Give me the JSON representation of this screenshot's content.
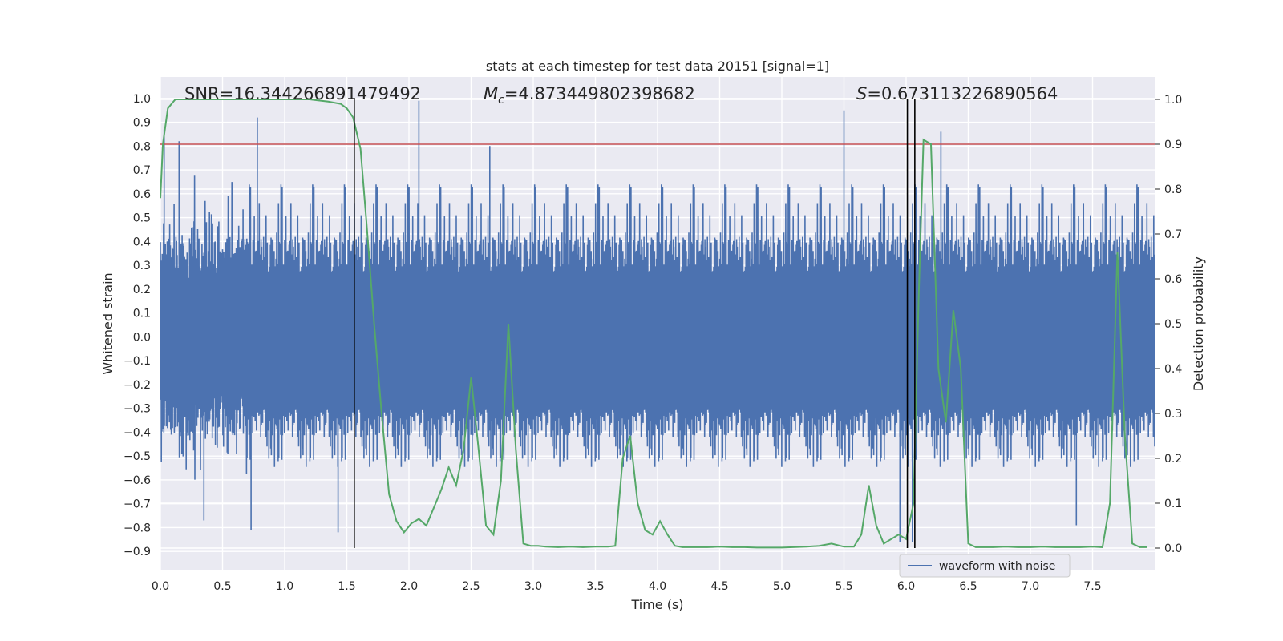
{
  "chart_data": {
    "type": "line",
    "title": "stats at each timestep for test data 20151 [signal=1]",
    "xlabel": "Time (s)",
    "ylabel": "Whitened strain",
    "y2label": "Detection probability",
    "xlim": [
      0,
      8
    ],
    "ylim": [
      -0.98,
      1.09
    ],
    "y2lim": [
      -0.05,
      1.05
    ],
    "x_ticks": [
      "0.0",
      "0.5",
      "1.0",
      "1.5",
      "2.0",
      "2.5",
      "3.0",
      "3.5",
      "4.0",
      "4.5",
      "5.0",
      "5.5",
      "6.0",
      "6.5",
      "7.0",
      "7.5"
    ],
    "y_ticks": [
      "1.0",
      "0.9",
      "0.8",
      "0.7",
      "0.6",
      "0.5",
      "0.4",
      "0.3",
      "0.2",
      "0.1",
      "0.0",
      "−0.1",
      "−0.2",
      "−0.3",
      "−0.4",
      "−0.5",
      "−0.6",
      "−0.7",
      "−0.8",
      "−0.9"
    ],
    "y2_ticks": [
      "1.0",
      "0.9",
      "0.8",
      "0.7",
      "0.6",
      "0.5",
      "0.4",
      "0.3",
      "0.2",
      "0.1",
      "0.0"
    ],
    "annotations": {
      "snr_label": "SNR=16.344266891479492",
      "mc_symbol": "M",
      "mc_sub": "c",
      "mc_value": "=4.873449802398682",
      "s_symbol": "S",
      "s_value": "=0.673113226890564"
    },
    "threshold": {
      "y2": 0.9,
      "color": "#c44e52"
    },
    "vertical_lines": [
      1.56,
      6.01,
      6.07
    ],
    "legend": {
      "entries": [
        "waveform with noise"
      ],
      "placement": "lower-right"
    },
    "grid": true,
    "series": [
      {
        "name": "waveform with noise",
        "axis": "left",
        "kind": "noise-strain",
        "color": "#4c72b0",
        "typical_amplitude": 0.42,
        "peak_max": 0.99,
        "peak_min": -0.86,
        "notable_peaks": [
          {
            "x": 0.03,
            "y": 0.87
          },
          {
            "x": 0.15,
            "y": 0.82
          },
          {
            "x": 0.78,
            "y": 0.92
          },
          {
            "x": 2.08,
            "y": 0.99
          },
          {
            "x": 2.65,
            "y": 0.8
          },
          {
            "x": 5.5,
            "y": 0.95
          },
          {
            "x": 6.28,
            "y": 0.86
          },
          {
            "x": 0.35,
            "y": -0.77
          },
          {
            "x": 0.73,
            "y": -0.81
          },
          {
            "x": 1.43,
            "y": -0.82
          },
          {
            "x": 5.95,
            "y": -0.86
          },
          {
            "x": 6.05,
            "y": -0.86
          },
          {
            "x": 7.37,
            "y": -0.79
          }
        ]
      },
      {
        "name": "",
        "axis": "right",
        "color": "#55a868",
        "x": [
          0.0,
          0.02,
          0.06,
          0.12,
          0.2,
          0.4,
          0.6,
          0.8,
          1.0,
          1.2,
          1.35,
          1.45,
          1.5,
          1.55,
          1.61,
          1.66,
          1.72,
          1.78,
          1.84,
          1.9,
          1.96,
          2.02,
          2.08,
          2.14,
          2.2,
          2.26,
          2.32,
          2.38,
          2.44,
          2.5,
          2.56,
          2.62,
          2.68,
          2.74,
          2.8,
          2.86,
          2.92,
          2.98,
          3.04,
          3.1,
          3.2,
          3.3,
          3.4,
          3.5,
          3.6,
          3.66,
          3.72,
          3.78,
          3.84,
          3.9,
          3.96,
          4.02,
          4.08,
          4.14,
          4.2,
          4.3,
          4.4,
          4.5,
          4.6,
          4.7,
          4.8,
          5.0,
          5.2,
          5.3,
          5.4,
          5.5,
          5.58,
          5.64,
          5.7,
          5.76,
          5.82,
          5.88,
          5.94,
          6.0,
          6.06,
          6.1,
          6.14,
          6.2,
          6.26,
          6.32,
          6.38,
          6.44,
          6.5,
          6.56,
          6.62,
          6.7,
          6.8,
          6.9,
          7.0,
          7.1,
          7.2,
          7.3,
          7.4,
          7.5,
          7.58,
          7.64,
          7.7,
          7.76,
          7.82,
          7.88,
          7.94
        ],
        "values": [
          0.78,
          0.9,
          0.98,
          1.0,
          1.0,
          1.0,
          1.0,
          1.0,
          1.0,
          1.0,
          0.995,
          0.99,
          0.98,
          0.96,
          0.89,
          0.72,
          0.5,
          0.3,
          0.12,
          0.06,
          0.035,
          0.055,
          0.065,
          0.05,
          0.09,
          0.13,
          0.18,
          0.14,
          0.22,
          0.38,
          0.22,
          0.05,
          0.03,
          0.15,
          0.5,
          0.22,
          0.01,
          0.005,
          0.005,
          0.003,
          0.002,
          0.003,
          0.002,
          0.003,
          0.003,
          0.005,
          0.2,
          0.25,
          0.1,
          0.04,
          0.03,
          0.06,
          0.03,
          0.005,
          0.002,
          0.002,
          0.002,
          0.003,
          0.002,
          0.002,
          0.001,
          0.001,
          0.003,
          0.005,
          0.01,
          0.003,
          0.003,
          0.03,
          0.14,
          0.05,
          0.01,
          0.02,
          0.03,
          0.02,
          0.1,
          0.55,
          0.91,
          0.9,
          0.4,
          0.28,
          0.53,
          0.4,
          0.01,
          0.002,
          0.002,
          0.002,
          0.003,
          0.002,
          0.002,
          0.003,
          0.002,
          0.002,
          0.002,
          0.003,
          0.002,
          0.1,
          0.66,
          0.25,
          0.01,
          0.002,
          0.002
        ]
      }
    ]
  }
}
